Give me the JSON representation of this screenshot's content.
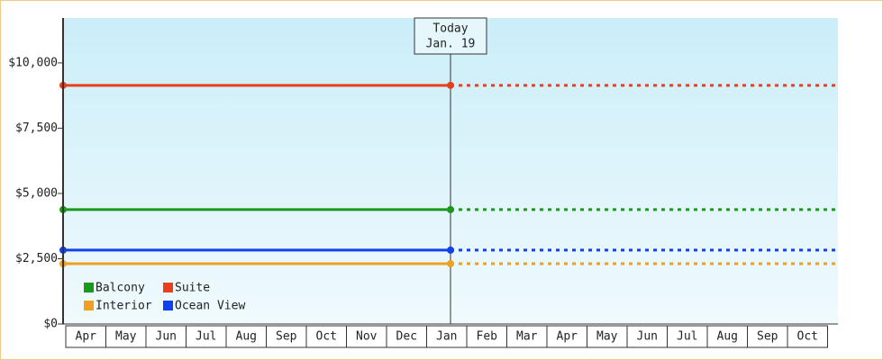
{
  "chart_data": {
    "type": "line",
    "annotation": {
      "title": "Today",
      "date": "Jan. 19"
    },
    "categories": [
      "Apr",
      "May",
      "Jun",
      "Jul",
      "Aug",
      "Sep",
      "Oct",
      "Nov",
      "Dec",
      "Jan",
      "Feb",
      "Mar",
      "Apr",
      "May",
      "Jun",
      "Jul",
      "Aug",
      "Sep",
      "Oct"
    ],
    "series": [
      {
        "name": "Balcony",
        "color": "#1a9a1a",
        "value": 4380
      },
      {
        "name": "Suite",
        "color": "#e8401c",
        "value": 9140
      },
      {
        "name": "Interior",
        "color": "#f0a020",
        "value": 2310
      },
      {
        "name": "Ocean View",
        "color": "#1040f0",
        "value": 2830
      }
    ],
    "ylim": [
      0,
      11720
    ],
    "yticks": [
      {
        "value": 0,
        "label": "$0"
      },
      {
        "value": 2500,
        "label": "$2,500"
      },
      {
        "value": 5000,
        "label": "$5,000"
      },
      {
        "value": 7500,
        "label": "$7,500"
      },
      {
        "value": 10000,
        "label": "$10,000"
      }
    ]
  }
}
